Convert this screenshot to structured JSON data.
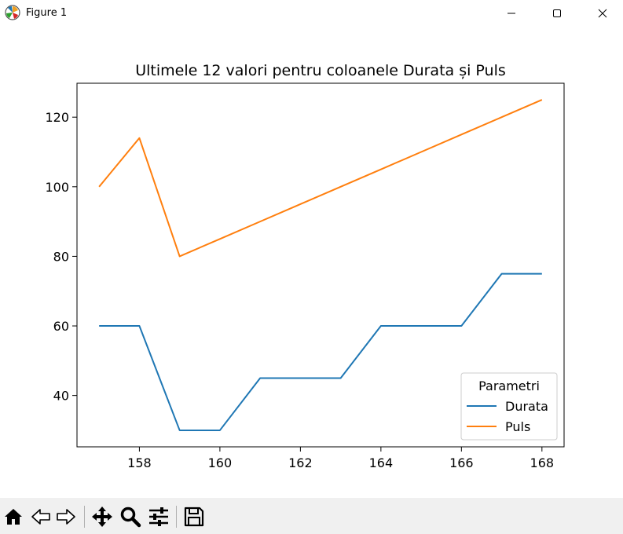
{
  "window": {
    "title": "Figure 1",
    "icons": {
      "app": "matplotlib-icon",
      "minimize": "minimize-icon",
      "maximize": "maximize-icon",
      "close": "close-icon"
    }
  },
  "toolbar": {
    "buttons": [
      {
        "name": "home-button",
        "icon": "home-icon"
      },
      {
        "name": "back-button",
        "icon": "back-arrow-icon"
      },
      {
        "name": "forward-button",
        "icon": "forward-arrow-icon"
      },
      {
        "name": "pan-button",
        "icon": "move-icon"
      },
      {
        "name": "zoom-button",
        "icon": "magnifier-icon"
      },
      {
        "name": "configure-subplots-button",
        "icon": "sliders-icon"
      },
      {
        "name": "save-button",
        "icon": "floppy-disk-icon"
      }
    ]
  },
  "chart_data": {
    "type": "line",
    "title": "Ultimele 12 valori pentru coloanele Durata și Puls",
    "xlabel": "",
    "ylabel": "",
    "x": [
      157,
      158,
      159,
      160,
      161,
      162,
      163,
      164,
      165,
      166,
      167,
      168
    ],
    "xticks": [
      158,
      160,
      162,
      164,
      166,
      168
    ],
    "yticks": [
      40,
      60,
      80,
      100,
      120
    ],
    "xlim": [
      156.45,
      168.55
    ],
    "ylim": [
      25.25,
      129.75
    ],
    "grid": false,
    "legend": {
      "title": "Parametri",
      "placement": "lower right"
    },
    "series": [
      {
        "name": "Durata",
        "color": "#1f77b4",
        "values": [
          60,
          60,
          30,
          30,
          45,
          45,
          45,
          60,
          60,
          60,
          75,
          75
        ]
      },
      {
        "name": "Puls",
        "color": "#ff7f0e",
        "values": [
          100,
          114,
          80,
          85,
          90,
          95,
          100,
          105,
          110,
          115,
          120,
          125
        ]
      }
    ]
  }
}
